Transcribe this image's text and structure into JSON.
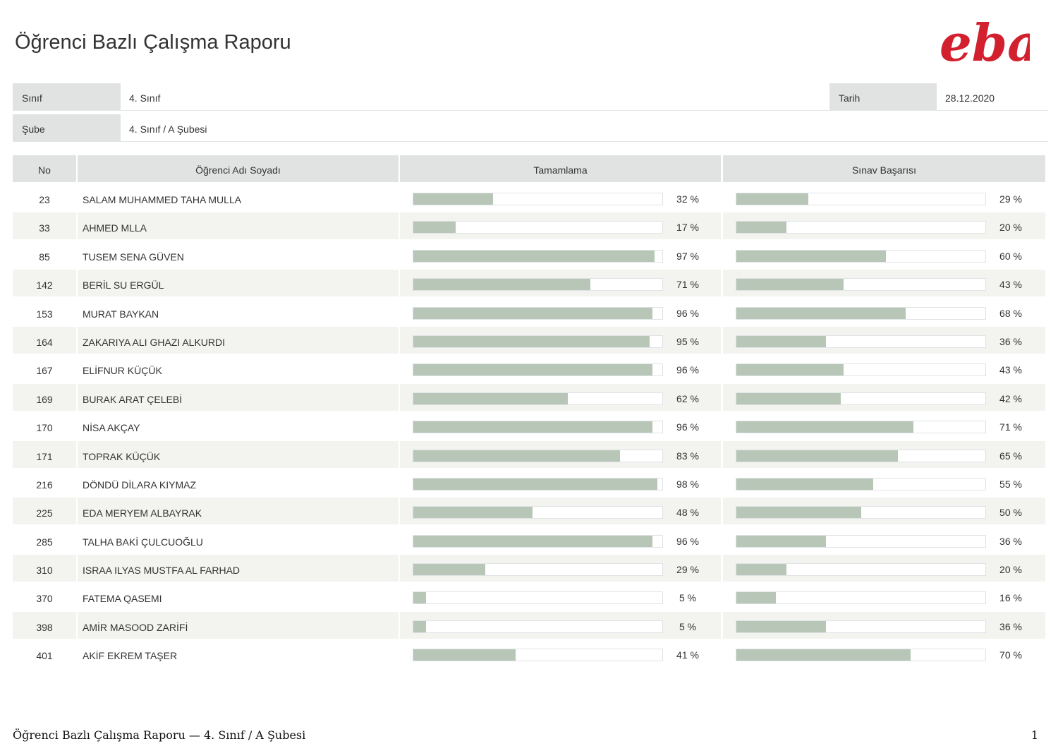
{
  "title": "Öğrenci Bazlı Çalışma Raporu",
  "logo": {
    "text": "eba",
    "color": "#d3202e"
  },
  "info": {
    "sinif_label": "Sınıf",
    "sinif_value": "4. Sınıf",
    "tarih_label": "Tarih",
    "tarih_value": "28.12.2020",
    "sube_label": "Şube",
    "sube_value": "4. Sınıf / A Şubesi"
  },
  "table": {
    "headers": {
      "no": "No",
      "name": "Öğrenci Adı Soyadı",
      "completion": "Tamamlama",
      "exam": "Sınav Başarısı"
    },
    "bar_color": "#b7c6b6",
    "rows": [
      {
        "no": "23",
        "name": "SALAM MUHAMMED TAHA MULLA",
        "completion": 32,
        "exam": 29
      },
      {
        "no": "33",
        "name": "AHMED MLLA",
        "completion": 17,
        "exam": 20
      },
      {
        "no": "85",
        "name": "TUSEM SENA GÜVEN",
        "completion": 97,
        "exam": 60
      },
      {
        "no": "142",
        "name": "BERİL SU ERGÜL",
        "completion": 71,
        "exam": 43
      },
      {
        "no": "153",
        "name": "MURAT BAYKAN",
        "completion": 96,
        "exam": 68
      },
      {
        "no": "164",
        "name": "ZAKARIYA ALI GHAZI ALKURDI",
        "completion": 95,
        "exam": 36
      },
      {
        "no": "167",
        "name": "ELİFNUR KÜÇÜK",
        "completion": 96,
        "exam": 43
      },
      {
        "no": "169",
        "name": "BURAK ARAT ÇELEBİ",
        "completion": 62,
        "exam": 42
      },
      {
        "no": "170",
        "name": "NİSA AKÇAY",
        "completion": 96,
        "exam": 71
      },
      {
        "no": "171",
        "name": "TOPRAK KÜÇÜK",
        "completion": 83,
        "exam": 65
      },
      {
        "no": "216",
        "name": "DÖNDÜ DİLARA KIYMAZ",
        "completion": 98,
        "exam": 55
      },
      {
        "no": "225",
        "name": "EDA MERYEM ALBAYRAK",
        "completion": 48,
        "exam": 50
      },
      {
        "no": "285",
        "name": "TALHA BAKİ ÇULCUOĞLU",
        "completion": 96,
        "exam": 36
      },
      {
        "no": "310",
        "name": "ISRAA ILYAS MUSTFA AL FARHAD",
        "completion": 29,
        "exam": 20
      },
      {
        "no": "370",
        "name": "FATEMA QASEMI",
        "completion": 5,
        "exam": 16
      },
      {
        "no": "398",
        "name": "AMİR MASOOD ZARİFİ",
        "completion": 5,
        "exam": 36
      },
      {
        "no": "401",
        "name": "AKİF EKREM TAŞER",
        "completion": 41,
        "exam": 70
      }
    ]
  },
  "footer": {
    "text": "Öğrenci Bazlı Çalışma Raporu — 4. Sınıf / A Şubesi",
    "page_number": "1"
  }
}
